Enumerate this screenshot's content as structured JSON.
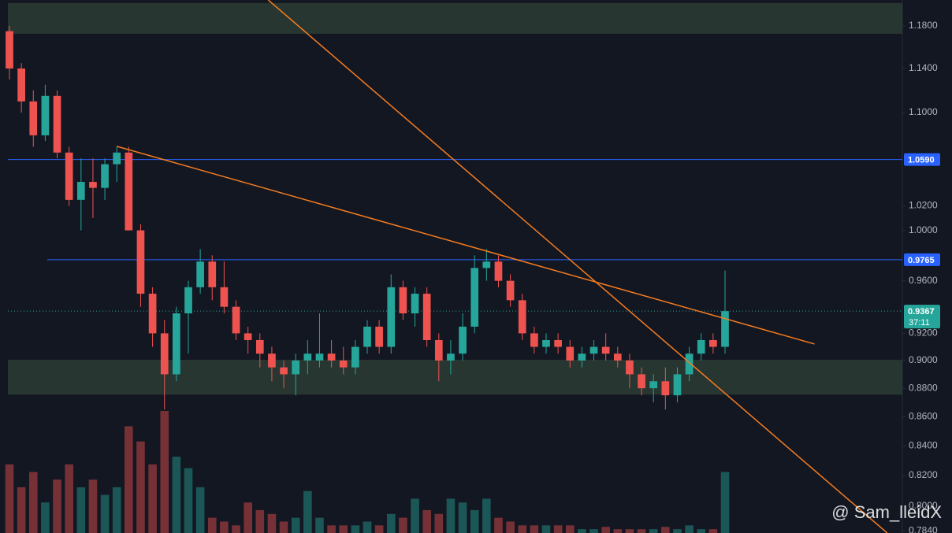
{
  "chart_data": {
    "type": "candlestick",
    "log_scale": true,
    "ylim": [
      0.7827,
      1.205
    ],
    "yticks": [
      {
        "value": 1.18,
        "label": "1.1800"
      },
      {
        "value": 1.14,
        "label": "1.1400"
      },
      {
        "value": 1.1,
        "label": "1.1000"
      },
      {
        "value": 1.02,
        "label": "1.0200"
      },
      {
        "value": 1.0,
        "label": "1.0000"
      },
      {
        "value": 0.96,
        "label": "0.9600"
      },
      {
        "value": 0.92,
        "label": "0.9200"
      },
      {
        "value": 0.9,
        "label": "0.9000"
      },
      {
        "value": 0.88,
        "label": "0.8800"
      },
      {
        "value": 0.86,
        "label": "0.8600"
      },
      {
        "value": 0.84,
        "label": "0.8400"
      },
      {
        "value": 0.82,
        "label": "0.8200"
      },
      {
        "value": 0.8,
        "label": "0.8000"
      },
      {
        "value": 0.784,
        "label": "0.7840"
      }
    ],
    "up_color": "#26a69a",
    "down_color": "#ef5350",
    "open": [
      1.175,
      1.14,
      1.11,
      1.08,
      1.115,
      1.065,
      1.025,
      1.04,
      1.035,
      1.055,
      1.065,
      1.0,
      0.95,
      0.92,
      0.89,
      0.935,
      0.955,
      0.975,
      0.955,
      0.94,
      0.92,
      0.915,
      0.905,
      0.895,
      0.89,
      0.9,
      0.9,
      0.905,
      0.9,
      0.895,
      0.91,
      0.925,
      0.91,
      0.955,
      0.935,
      0.95,
      0.915,
      0.9,
      0.905,
      0.925,
      0.97,
      0.975,
      0.96,
      0.945,
      0.92,
      0.91,
      0.915,
      0.91,
      0.9,
      0.905,
      0.91,
      0.905,
      0.9,
      0.89,
      0.88,
      0.885,
      0.875,
      0.89,
      0.905,
      0.915,
      0.91
    ],
    "high": [
      1.18,
      1.145,
      1.12,
      1.125,
      1.12,
      1.07,
      1.06,
      1.06,
      1.06,
      1.07,
      1.07,
      1.005,
      0.955,
      0.93,
      0.94,
      0.96,
      0.985,
      0.98,
      0.975,
      0.945,
      0.925,
      0.92,
      0.91,
      0.9,
      0.905,
      0.915,
      0.935,
      0.915,
      0.91,
      0.915,
      0.93,
      0.93,
      0.965,
      0.96,
      0.955,
      0.955,
      0.92,
      0.915,
      0.935,
      0.98,
      0.985,
      0.98,
      0.965,
      0.95,
      0.925,
      0.92,
      0.92,
      0.915,
      0.91,
      0.915,
      0.92,
      0.91,
      0.905,
      0.895,
      0.89,
      0.895,
      0.895,
      0.91,
      0.92,
      0.92,
      0.968
    ],
    "low": [
      1.13,
      1.1,
      1.07,
      1.075,
      1.06,
      1.02,
      1.0,
      1.01,
      1.025,
      1.04,
      1.0,
      0.94,
      0.91,
      0.865,
      0.885,
      0.905,
      0.95,
      0.945,
      0.935,
      0.915,
      0.905,
      0.895,
      0.885,
      0.88,
      0.875,
      0.89,
      0.895,
      0.895,
      0.89,
      0.89,
      0.905,
      0.905,
      0.905,
      0.93,
      0.925,
      0.91,
      0.885,
      0.89,
      0.9,
      0.92,
      0.96,
      0.955,
      0.94,
      0.915,
      0.905,
      0.905,
      0.905,
      0.895,
      0.895,
      0.9,
      0.9,
      0.895,
      0.88,
      0.875,
      0.87,
      0.865,
      0.87,
      0.885,
      0.9,
      0.905,
      0.905
    ],
    "close": [
      1.14,
      1.11,
      1.08,
      1.115,
      1.065,
      1.025,
      1.04,
      1.035,
      1.055,
      1.065,
      1.0,
      0.95,
      0.92,
      0.89,
      0.935,
      0.955,
      0.975,
      0.955,
      0.94,
      0.92,
      0.915,
      0.905,
      0.895,
      0.89,
      0.9,
      0.905,
      0.905,
      0.9,
      0.895,
      0.91,
      0.925,
      0.91,
      0.955,
      0.935,
      0.95,
      0.915,
      0.9,
      0.905,
      0.925,
      0.97,
      0.975,
      0.96,
      0.945,
      0.92,
      0.91,
      0.915,
      0.91,
      0.9,
      0.905,
      0.91,
      0.905,
      0.9,
      0.89,
      0.88,
      0.885,
      0.875,
      0.89,
      0.905,
      0.915,
      0.91,
      0.9367
    ],
    "volume": [
      90,
      60,
      80,
      40,
      70,
      90,
      60,
      70,
      50,
      60,
      140,
      120,
      90,
      160,
      100,
      85,
      60,
      20,
      15,
      10,
      40,
      30,
      25,
      15,
      20,
      55,
      20,
      10,
      10,
      10,
      15,
      10,
      25,
      20,
      45,
      30,
      25,
      45,
      40,
      30,
      45,
      20,
      15,
      10,
      10,
      10,
      10,
      10,
      5,
      5,
      8,
      5,
      5,
      5,
      5,
      8,
      5,
      10,
      5,
      5,
      80
    ],
    "zones": [
      [
        1.1725,
        1.202
      ],
      [
        0.8755,
        0.9005
      ]
    ],
    "zone_color": "#2b3a33",
    "hlines": [
      {
        "value": 1.059,
        "label": "1.0590"
      },
      {
        "value": 0.9765,
        "label": "0.9765"
      }
    ],
    "hline_color": "#2962ff",
    "current_price": {
      "value": 0.9367,
      "label": "0.9367"
    },
    "countdown": "37:11",
    "trendlines": [
      [
        [
          9.0,
          1.0704
        ],
        [
          67.5,
          0.9121
        ]
      ],
      [
        [
          21.7,
          1.205
        ],
        [
          73.6,
          0.7827
        ]
      ]
    ],
    "trendline_color": "#f57c20",
    "watermark": "@ Sam_lleidX"
  }
}
